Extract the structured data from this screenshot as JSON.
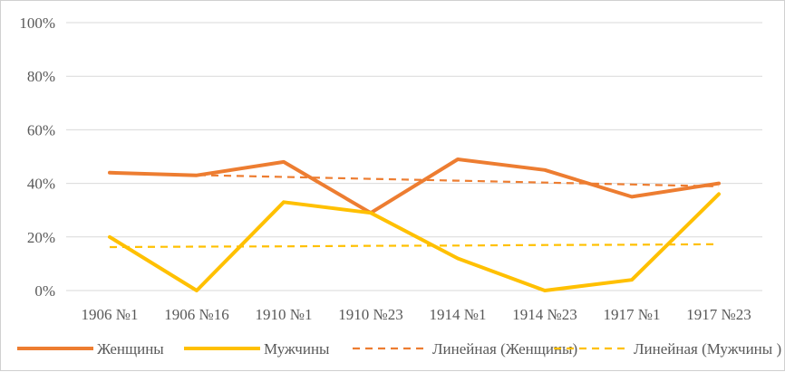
{
  "chart_data": {
    "type": "line",
    "categories": [
      "1906  №1",
      "1906 №16",
      "1910 №1",
      "1910 №23",
      "1914 №1",
      "1914 №23",
      "1917 №1",
      "1917 №23"
    ],
    "ylim": [
      0,
      100
    ],
    "y_ticks": [
      0,
      20,
      40,
      60,
      80,
      100
    ],
    "y_tick_labels": [
      "0%",
      "20%",
      "40%",
      "60%",
      "80%",
      "100%"
    ],
    "grid": true,
    "legend_position": "bottom",
    "series": [
      {
        "name": "Женщины",
        "values": [
          44,
          43,
          48,
          29,
          49,
          45,
          35,
          40
        ],
        "color": "#ED7D31",
        "style": "solid"
      },
      {
        "name": "Мужчины",
        "values": [
          20,
          0,
          33,
          29,
          12,
          0,
          4,
          36
        ],
        "color": "#FFC000",
        "style": "solid"
      },
      {
        "name": "Линейная (Женщины)",
        "values": [
          43.8,
          43.1,
          42.4,
          41.7,
          41.0,
          40.3,
          39.6,
          38.9
        ],
        "color": "#ED7D31",
        "style": "dashed"
      },
      {
        "name": "Линейная (Мужчины )",
        "values": [
          16.2,
          16.4,
          16.5,
          16.7,
          16.8,
          17.0,
          17.1,
          17.3
        ],
        "color": "#FFC000",
        "style": "dashed"
      }
    ]
  }
}
